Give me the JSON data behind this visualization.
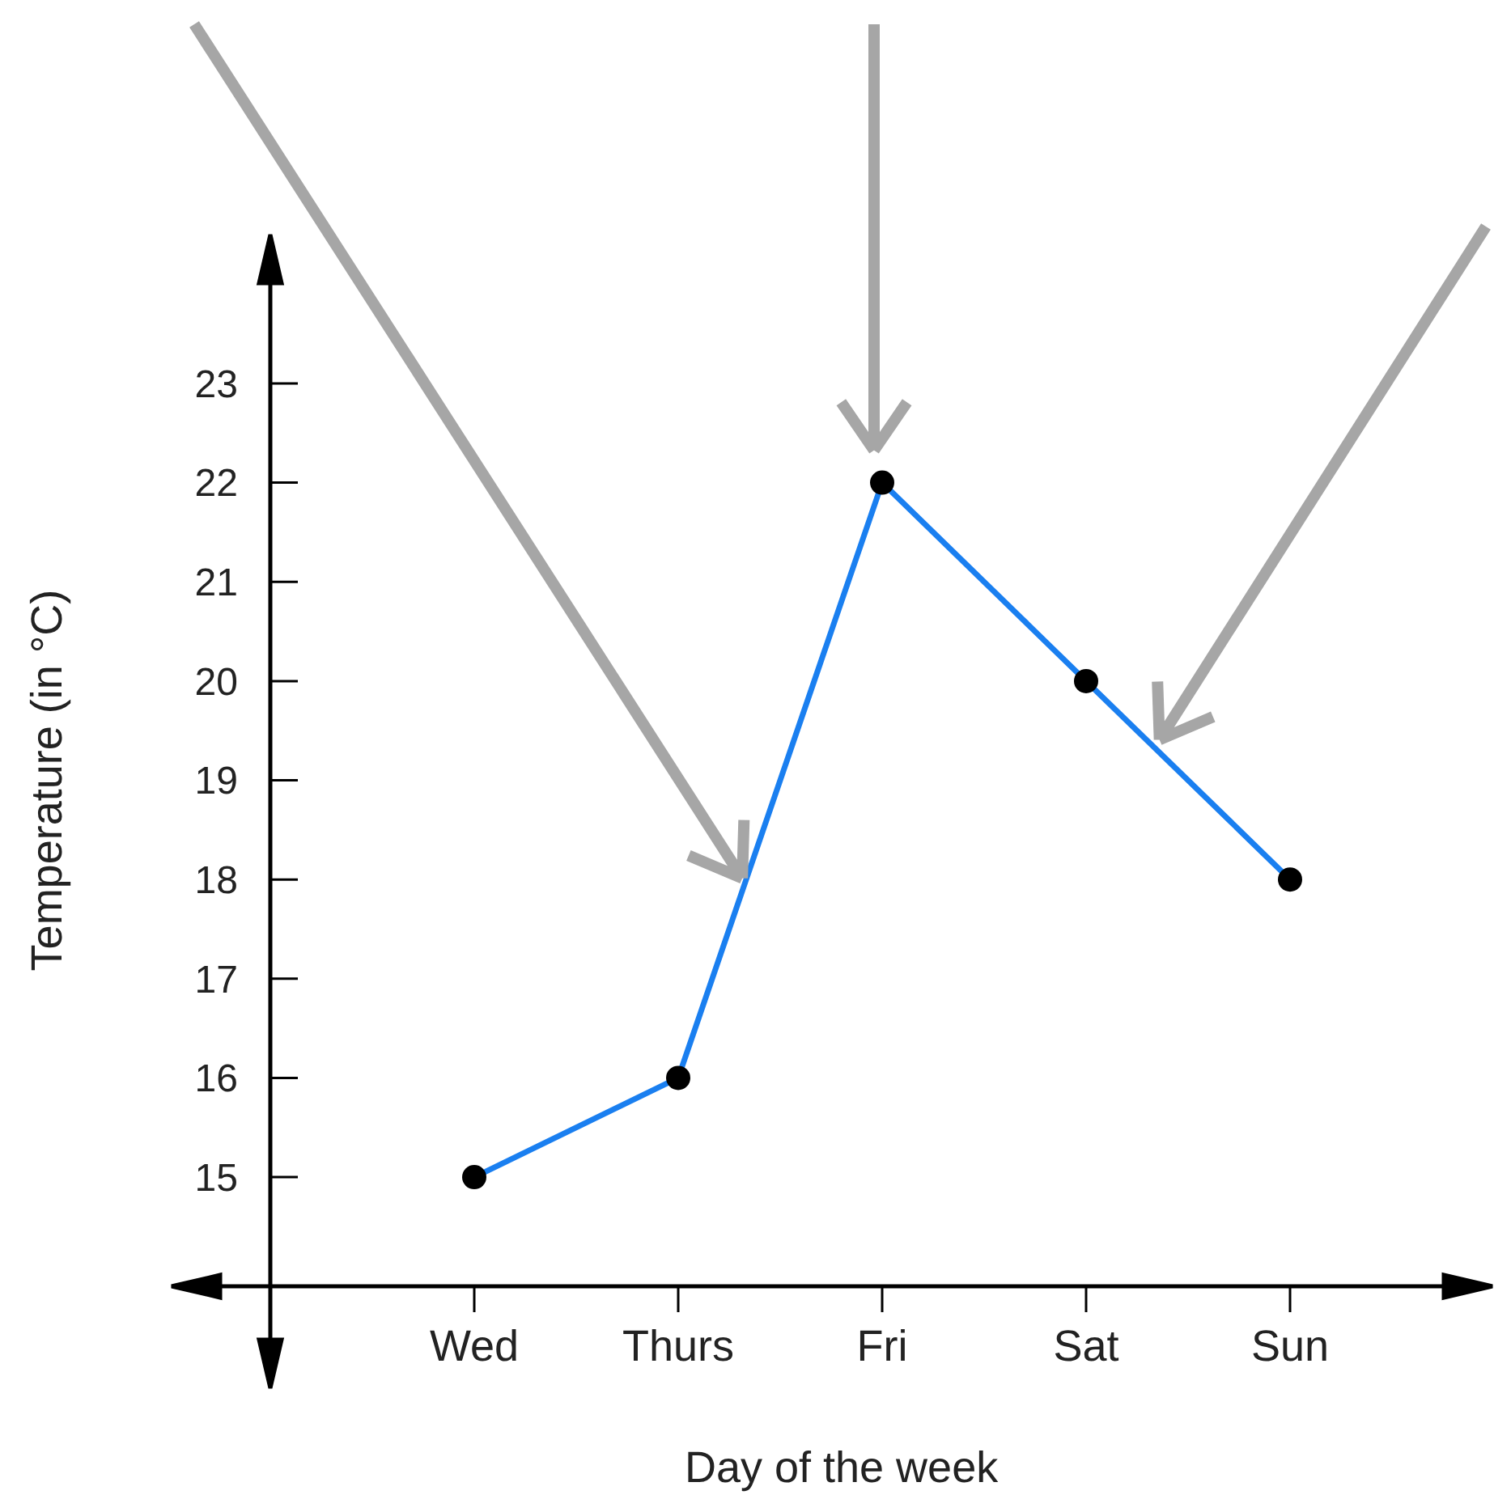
{
  "chart_data": {
    "type": "line",
    "xlabel": "Day of the week",
    "ylabel": "Temperature (in °C)",
    "categories": [
      "Wed",
      "Thurs",
      "Fri",
      "Sat",
      "Sun"
    ],
    "series": [
      {
        "color": "#1a7ff0",
        "values": [
          15,
          16,
          22,
          20,
          18
        ]
      }
    ],
    "ylim": [
      13.9,
      24.5
    ],
    "yticks": [
      15,
      16,
      17,
      18,
      19,
      20,
      21,
      22,
      23
    ],
    "marker": "circle",
    "line_style": "solid"
  }
}
